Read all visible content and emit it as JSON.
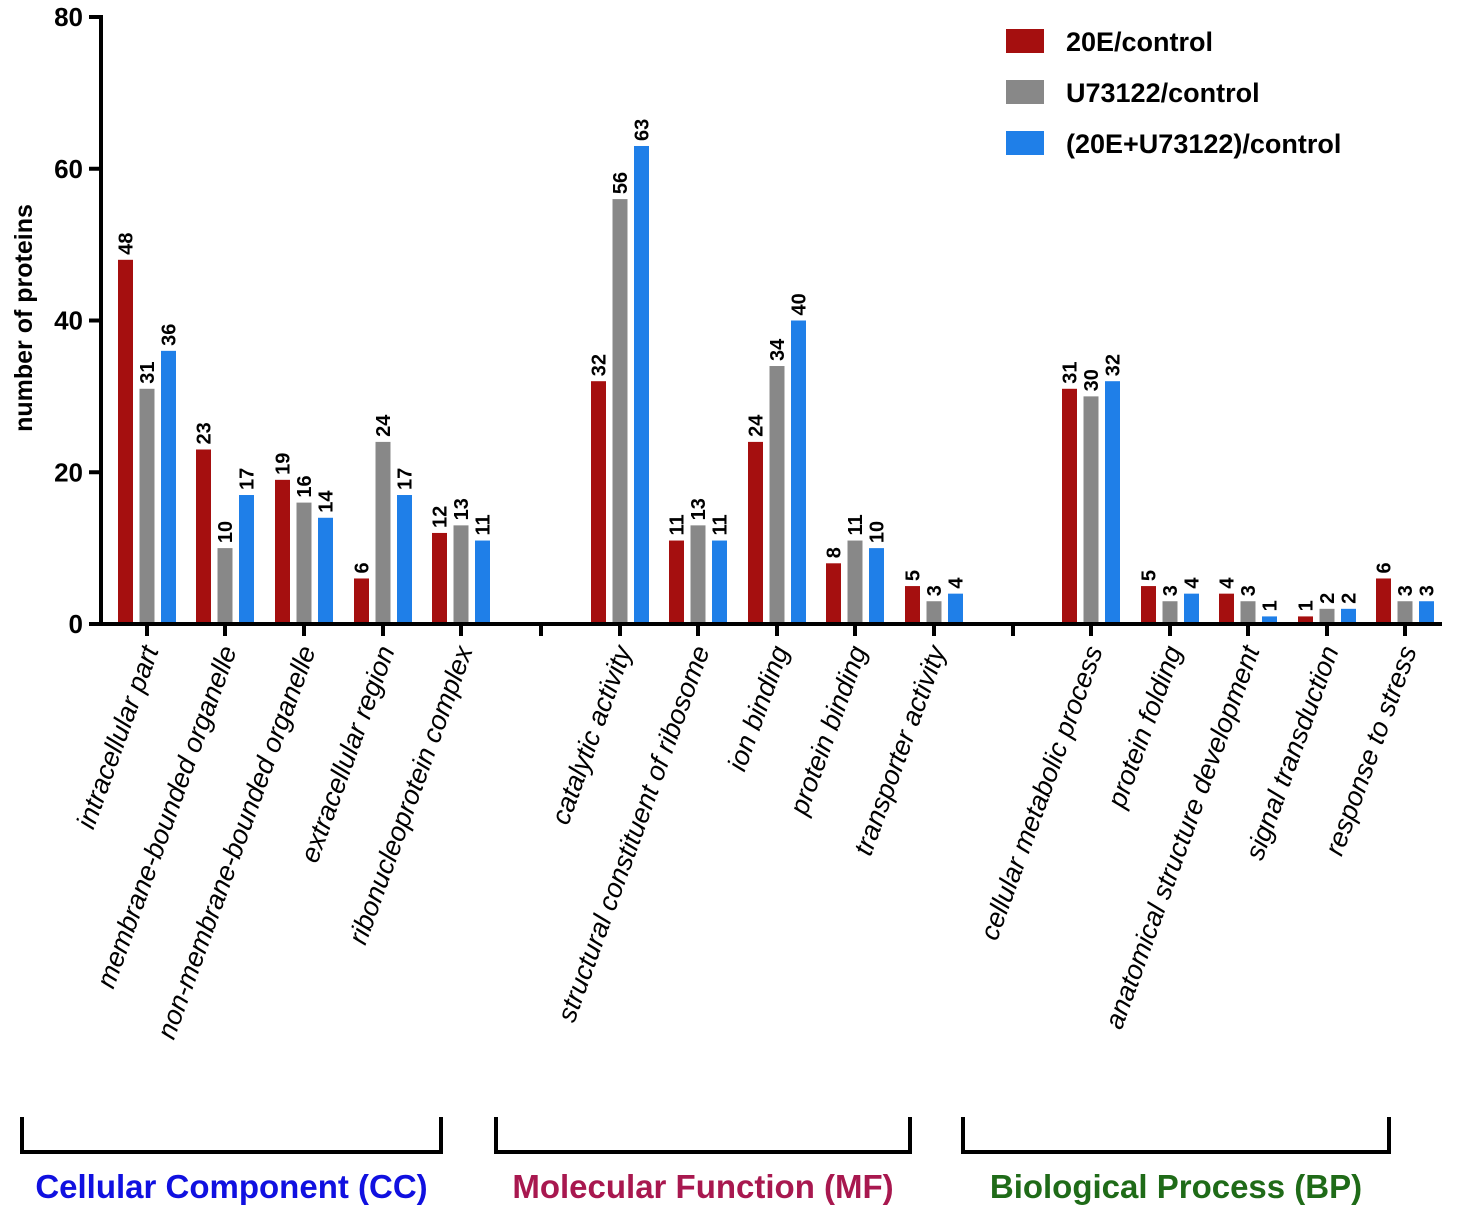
{
  "chart_data": {
    "type": "bar",
    "title": "",
    "xlabel": "",
    "ylabel": "number of proteins",
    "ylim": [
      0,
      80
    ],
    "yticks": [
      0,
      20,
      40,
      60,
      80
    ],
    "groups": [
      {
        "name": "Cellular Component (CC)",
        "color": "#1010e0",
        "categories": [
          "intracellular part",
          "membrane-bounded organelle",
          "non-membrane-bounded organelle",
          "extracellular region",
          "ribonucleoprotein complex"
        ]
      },
      {
        "name": "Molecular Function (MF)",
        "color": "#a8184f",
        "categories": [
          "catalytic activity",
          "structural constituent of ribosome",
          "ion binding",
          "protein binding",
          "transporter activity"
        ]
      },
      {
        "name": "Biological Process (BP)",
        "color": "#1f6b18",
        "categories": [
          "cellular metabolic process",
          "protein folding",
          "anatomical structure development",
          "signal transduction",
          "response to stress"
        ]
      }
    ],
    "series": [
      {
        "name": "20E/control",
        "color": "#a50f0f",
        "values": [
          48,
          23,
          19,
          6,
          12,
          32,
          11,
          24,
          8,
          5,
          31,
          5,
          4,
          1,
          6
        ]
      },
      {
        "name": "U73122/control",
        "color": "#888888",
        "values": [
          31,
          10,
          16,
          24,
          13,
          56,
          13,
          34,
          11,
          3,
          30,
          3,
          3,
          2,
          3
        ]
      },
      {
        "name": "(20E+U73122)/control",
        "color": "#1f7fe8",
        "values": [
          36,
          17,
          14,
          17,
          11,
          63,
          11,
          40,
          10,
          4,
          32,
          4,
          1,
          2,
          3
        ]
      }
    ],
    "legend_position": "top-right"
  }
}
